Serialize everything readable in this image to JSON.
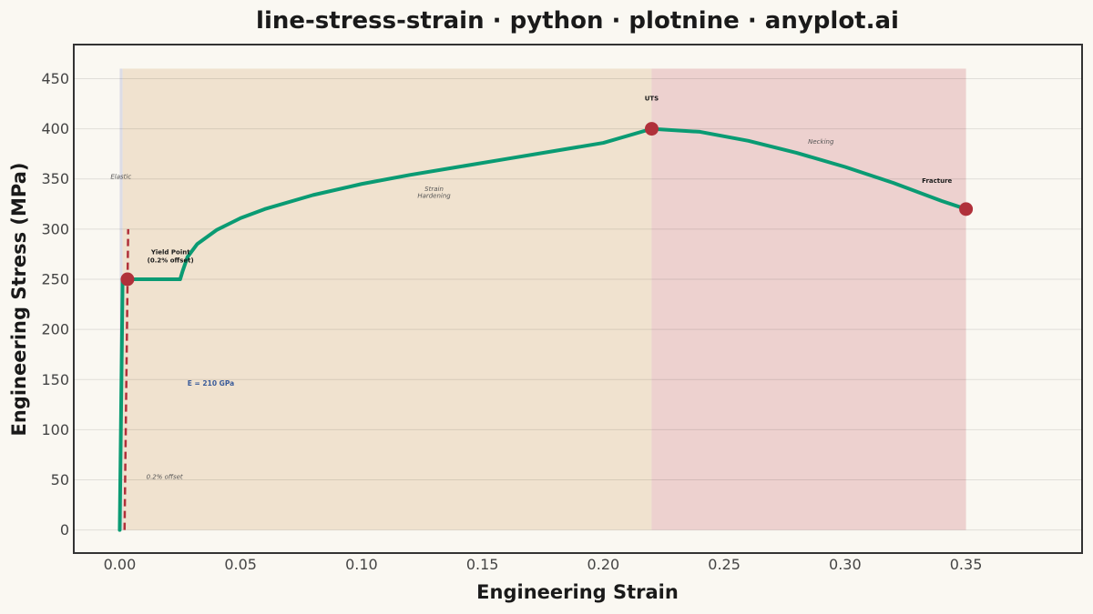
{
  "chart_data": {
    "type": "line",
    "title": "line-stress-strain · python · plotnine · anyplot.ai",
    "xlabel": "Engineering Strain",
    "ylabel": "Engineering Stress (MPa)",
    "xlim": [
      -0.019,
      0.398
    ],
    "ylim": [
      -23,
      484
    ],
    "x_ticks": [
      0.0,
      0.05,
      0.1,
      0.15,
      0.2,
      0.25,
      0.3,
      0.35
    ],
    "x_tick_labels": [
      "0.00",
      "0.05",
      "0.10",
      "0.15",
      "0.20",
      "0.25",
      "0.30",
      "0.35"
    ],
    "y_ticks": [
      0,
      50,
      100,
      150,
      200,
      250,
      300,
      350,
      400,
      450
    ],
    "y_tick_labels": [
      "0",
      "50",
      "100",
      "150",
      "200",
      "250",
      "300",
      "350",
      "400",
      "450"
    ],
    "grid": true,
    "regions": [
      {
        "name": "Elastic",
        "x": [
          0.0,
          0.0012
        ],
        "y": [
          0,
          460
        ],
        "color": "#DCDCE6"
      },
      {
        "name": "Strain Hardening",
        "x": [
          0.0012,
          0.22
        ],
        "y": [
          0,
          460
        ],
        "color": "#F0E2CF"
      },
      {
        "name": "Necking",
        "x": [
          0.22,
          0.35
        ],
        "y": [
          0,
          460
        ],
        "color": "#EDD1CF"
      }
    ],
    "series": [
      {
        "color": "#0A9B73",
        "x": [
          0.0,
          0.0012,
          0.025,
          0.026,
          0.028,
          0.032,
          0.04,
          0.05,
          0.06,
          0.08,
          0.1,
          0.12,
          0.14,
          0.16,
          0.18,
          0.2,
          0.22,
          0.24,
          0.26,
          0.28,
          0.3,
          0.32,
          0.34,
          0.35
        ],
        "values": [
          0,
          250,
          250,
          258,
          272,
          285,
          299,
          311,
          320,
          334,
          345,
          354,
          362,
          370,
          378,
          386,
          400,
          397,
          388,
          376,
          362,
          346,
          328,
          320
        ]
      }
    ],
    "offset_line": {
      "x": [
        0.002,
        0.0035
      ],
      "y": [
        0,
        300
      ],
      "color": "#B0303A"
    },
    "key_points": [
      {
        "x": 0.0032,
        "y": 250
      },
      {
        "x": 0.22,
        "y": 400
      },
      {
        "x": 0.35,
        "y": 320
      }
    ],
    "point_color": "#B0303A",
    "annotations": [
      {
        "text": "Elastic",
        "x": 0.0005,
        "y": 350,
        "style": "italic"
      },
      {
        "text": "Yield Point",
        "x": 0.021,
        "y": 275,
        "style": "bold"
      },
      {
        "text": "(0.2% offset)",
        "x": 0.021,
        "y": 267,
        "style": "bold"
      },
      {
        "text": "Strain",
        "x": 0.13,
        "y": 338,
        "style": "italic"
      },
      {
        "text": "Hardening",
        "x": 0.13,
        "y": 331,
        "style": "italic"
      },
      {
        "text": "UTS",
        "x": 0.22,
        "y": 428,
        "style": "bold"
      },
      {
        "text": "Necking",
        "x": 0.29,
        "y": 385,
        "style": "italic"
      },
      {
        "text": "Fracture",
        "x": 0.338,
        "y": 346,
        "style": "bold"
      },
      {
        "text": "E = 210 GPa",
        "x": 0.028,
        "y": 144,
        "style": "modulus"
      },
      {
        "text": "0.2% offset",
        "x": 0.011,
        "y": 51,
        "style": "italic"
      }
    ]
  }
}
